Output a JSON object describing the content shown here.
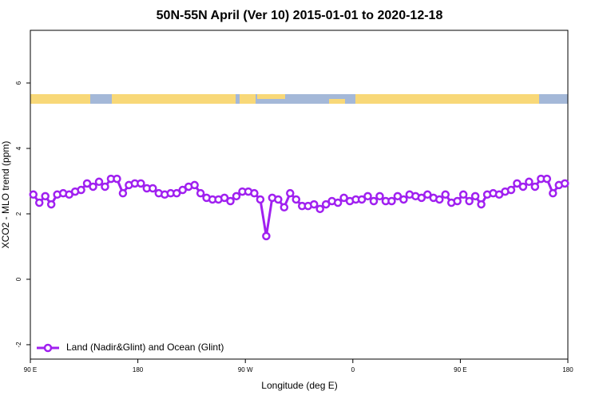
{
  "chart_data": {
    "type": "line",
    "title": "50N-55N April (Ver 10)   2015-01-01 to 2020-12-18",
    "xlabel": "Longitude (deg E)",
    "ylabel": "XCO2 - MLO trend (ppm)",
    "x": [
      92.5,
      97.5,
      102.5,
      107.5,
      112.5,
      117.5,
      122.5,
      127.5,
      132.5,
      137.5,
      142.5,
      147.5,
      152.5,
      157.5,
      162.5,
      167.5,
      172.5,
      177.5,
      182.5,
      187.5,
      192.5,
      197.5,
      202.5,
      207.5,
      212.5,
      217.5,
      222.5,
      227.5,
      232.5,
      237.5,
      242.5,
      247.5,
      252.5,
      257.5,
      262.5,
      267.5,
      272.5,
      277.5,
      282.5,
      287.5,
      292.5,
      297.5,
      302.5,
      307.5,
      312.5,
      317.5,
      322.5,
      327.5,
      332.5,
      337.5,
      342.5,
      347.5,
      352.5,
      357.5,
      362.5,
      367.5,
      372.5,
      377.5,
      382.5,
      387.5,
      392.5,
      397.5,
      402.5,
      407.5,
      412.5,
      417.5,
      422.5,
      427.5,
      432.5,
      437.5,
      442.5,
      447.5,
      452.5,
      457.5,
      462.5,
      467.5,
      472.5,
      477.5,
      482.5,
      487.5,
      492.5,
      497.5,
      502.5,
      507.5,
      512.5,
      517.5,
      522.5,
      527.5,
      532.5,
      537.5
    ],
    "series": [
      {
        "name": "Land (Nadir&Glint) and Ocean (Glint)",
        "color": "#a020f0",
        "values": [
          2.59,
          2.34,
          2.54,
          2.29,
          2.59,
          2.63,
          2.59,
          2.68,
          2.73,
          2.93,
          2.83,
          2.98,
          2.83,
          3.07,
          3.07,
          2.63,
          2.88,
          2.93,
          2.93,
          2.78,
          2.78,
          2.63,
          2.59,
          2.63,
          2.63,
          2.73,
          2.83,
          2.88,
          2.63,
          2.49,
          2.44,
          2.44,
          2.49,
          2.39,
          2.54,
          2.68,
          2.68,
          2.63,
          2.44,
          1.32,
          2.49,
          2.44,
          2.2,
          2.63,
          2.44,
          2.24,
          2.24,
          2.29,
          2.15,
          2.29,
          2.39,
          2.34,
          2.49,
          2.39,
          2.44,
          2.44,
          2.54,
          2.39,
          2.54,
          2.39,
          2.39,
          2.54,
          2.44,
          2.59,
          2.54,
          2.49,
          2.59,
          2.49,
          2.44,
          2.59,
          2.34,
          2.39,
          2.59,
          2.39,
          2.54,
          2.29,
          2.59,
          2.63,
          2.59,
          2.68,
          2.73,
          2.93,
          2.83,
          2.98,
          2.83,
          3.07,
          3.07,
          2.63,
          2.88,
          2.93
        ]
      }
    ],
    "xlim": [
      90,
      540
    ],
    "xticks": [
      {
        "value": 90,
        "label": "90 E"
      },
      180,
      {
        "value": 270,
        "label": "90 W"
      },
      {
        "value": 360,
        "label": "0"
      },
      {
        "value": 450,
        "label": "90 E"
      },
      {
        "value": 540,
        "label": "180"
      }
    ],
    "ylim": [
      -2.44,
      7.61
    ],
    "yticks": [
      -2,
      0,
      2,
      4,
      6
    ],
    "legend": "bottom-left"
  }
}
